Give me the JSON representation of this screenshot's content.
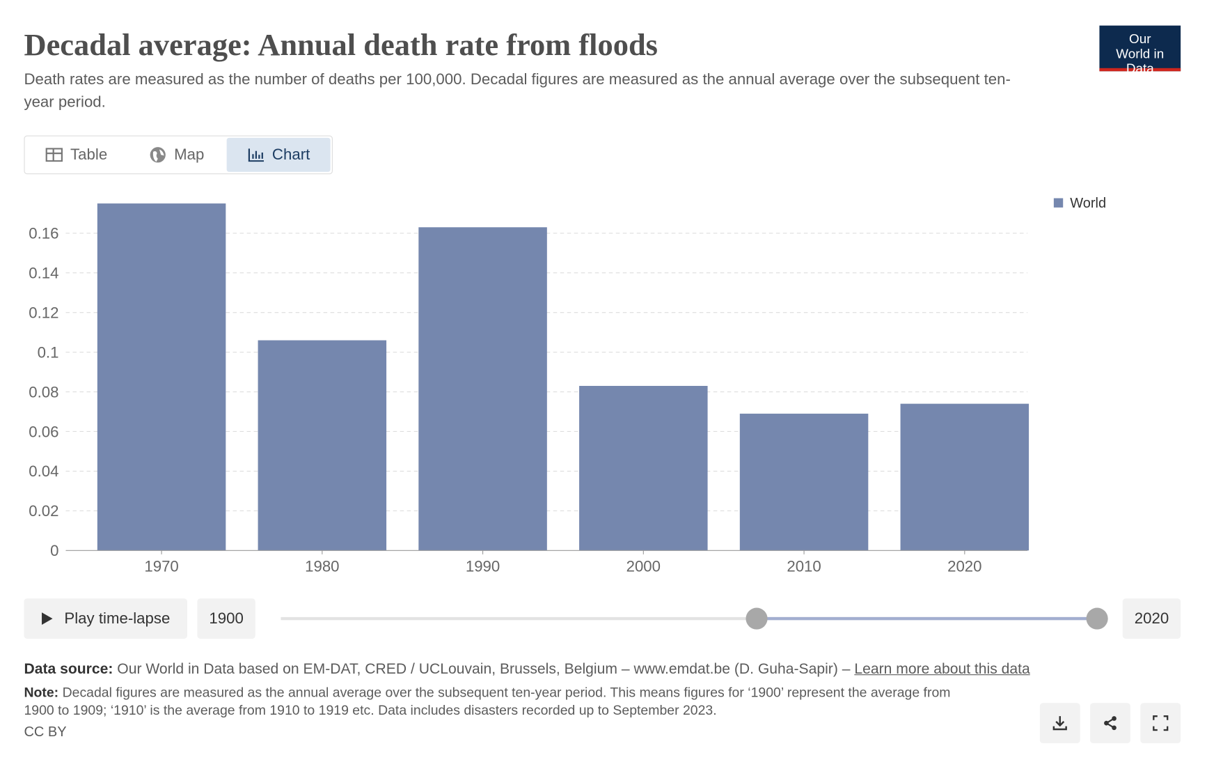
{
  "logo": "Our World in Data",
  "tabs": [
    "Table",
    "Map",
    "Chart"
  ],
  "chart_data": {
    "type": "bar",
    "title": "Decadal average: Annual death rate from floods",
    "subtitle": "Death rates are measured as the number of deaths per 100,000. Decadal figures are measured as the annual average over the subsequent ten-year period.",
    "categories": [
      "1970",
      "1980",
      "1990",
      "2000",
      "2010",
      "2020"
    ],
    "series": [
      {
        "name": "World",
        "color": "#7587ae",
        "values": [
          0.175,
          0.106,
          0.163,
          0.083,
          0.069,
          0.074
        ]
      }
    ],
    "ylim": [
      0,
      0.18
    ],
    "yticks": [
      0,
      0.02,
      0.04,
      0.06,
      0.08,
      0.1,
      0.12,
      0.14,
      0.16
    ],
    "grid": true,
    "legend": "top-right"
  },
  "timeline": {
    "play": "Play time-lapse",
    "start": "1900",
    "end": "2020"
  },
  "footer": {
    "source_label": "Data source:",
    "source": "Our World in Data based on EM-DAT, CRED / UCLouvain, Brussels, Belgium – www.emdat.be (D. Guha-Sapir) –",
    "source_link": "Learn more about this data",
    "note_label": "Note:",
    "note": "Decadal figures are measured as the annual average over the subsequent ten-year period. This means figures for ‘1900’ represent the average from 1900 to 1909; ‘1910’ is the average from 1910 to 1919 etc. Data includes disasters recorded up to September 2023.",
    "license": "CC BY"
  }
}
